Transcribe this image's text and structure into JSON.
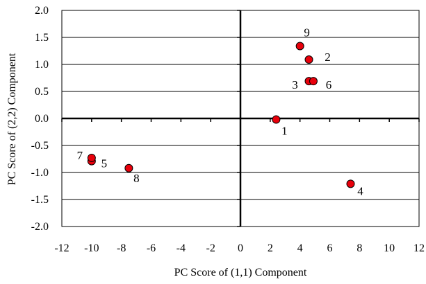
{
  "chart_data": {
    "type": "scatter",
    "title": "",
    "xlabel": "PC Score of (1,1) Component",
    "ylabel": "PC Score of (2,2) Component",
    "xlim": [
      -12,
      12
    ],
    "ylim": [
      -2.0,
      2.0
    ],
    "x_ticks": [
      -12,
      -10,
      -8,
      -6,
      -4,
      -2,
      0,
      2,
      4,
      6,
      8,
      10,
      12
    ],
    "y_ticks": [
      2.0,
      1.5,
      1.0,
      0.5,
      0.0,
      -0.5,
      -1.0,
      -1.5,
      -2.0
    ],
    "x_tick_labels": [
      "-12",
      "-10",
      "-8",
      "-6",
      "-4",
      "-2",
      "0",
      "2",
      "4",
      "6",
      "8",
      "10",
      "12"
    ],
    "y_tick_labels": [
      "2.0",
      "1.5",
      "1.0",
      "0.5",
      "0.0",
      "-0.5",
      "-1.0",
      "-1.5",
      "-2.0"
    ],
    "grid": "horizontal",
    "marker_color": "#e8000b",
    "marker_edge_color": "#000000",
    "points": [
      {
        "label": "1",
        "x": 2.4,
        "y": -0.02
      },
      {
        "label": "2",
        "x": 4.6,
        "y": 1.09
      },
      {
        "label": "3",
        "x": 4.6,
        "y": 0.69
      },
      {
        "label": "4",
        "x": 7.4,
        "y": -1.21
      },
      {
        "label": "5",
        "x": -10.0,
        "y": -0.79
      },
      {
        "label": "6",
        "x": 4.9,
        "y": 0.69
      },
      {
        "label": "7",
        "x": -10.0,
        "y": -0.73
      },
      {
        "label": "8",
        "x": -7.5,
        "y": -0.92
      },
      {
        "label": "9",
        "x": 4.0,
        "y": 1.34
      }
    ]
  }
}
